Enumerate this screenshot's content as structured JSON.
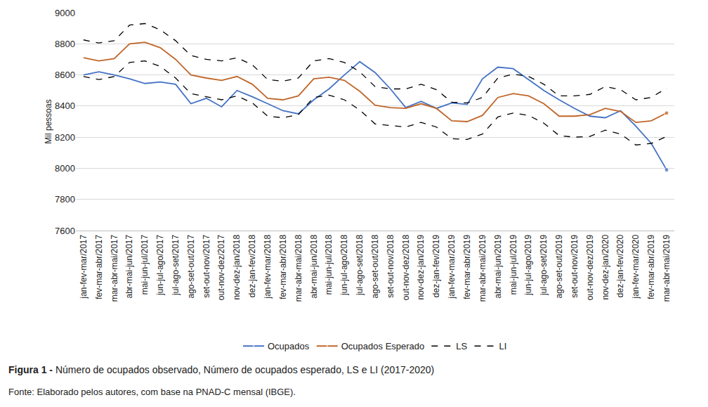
{
  "chart_data": {
    "type": "line",
    "title": "Figura 1 -",
    "subtitle": "Número de ocupados observado, Número de ocupados esperado, LS e LI (2017-2020)",
    "source": "Fonte: Elaborado pelos autores, com base na PNAD-C mensal (IBGE).",
    "y_label": "Mil pessoas",
    "categories": [
      "jan-fev-mar/2017",
      "fev-mar-abr/2017",
      "mar-abr-mai/2017",
      "abr-mai-jun/2017",
      "mai-jun-jul/2017",
      "jun-jul-ago/2017",
      "jul-ago-set/2017",
      "ago-set-out/2017",
      "set-out-nov/2017",
      "out-nov-dez/2017",
      "nov-dez-jan/2018",
      "dez-jan-fev/2018",
      "jan-fev-mar/2018",
      "fev-mar-abr/2018",
      "mar-abr-mai/2018",
      "abr-mai-jun/2018",
      "mai-jun-jul/2018",
      "jun-jul-ago/2018",
      "jul-ago-set/2018",
      "ago-set-out/2018",
      "set-out-nov/2018",
      "out-nov-dez/2018",
      "nov-dez-jan/2019",
      "dez-jan-fev/2019",
      "jan-fev-mar/2019",
      "fev-mar-abr/2019",
      "mar-abr-mai/2019",
      "abr-mai-jun/2019",
      "mai-jun-jul/2019",
      "jun-jul-ago/2019",
      "jul-ago-set/2019",
      "ago-set-out/2019",
      "set-out-nov/2019",
      "out-nov-dez/2019",
      "nov-dez-jan/2020",
      "dez-jan-fev/2020",
      "jan-fev-mar/2020",
      "fev-mar-abr/2019",
      "mar-abr-mai/2019"
    ],
    "series": [
      {
        "name": "Ocupados",
        "color": "#4472c4",
        "line_style": "solid",
        "marker": "last",
        "values": [
          8600,
          8620,
          8600,
          8575,
          8545,
          8555,
          8540,
          8415,
          8450,
          8395,
          8500,
          8460,
          8415,
          8370,
          8350,
          8440,
          8510,
          8600,
          8685,
          8615,
          8510,
          8390,
          8430,
          8385,
          8420,
          8410,
          8575,
          8650,
          8640,
          8570,
          8500,
          8440,
          8385,
          8335,
          8325,
          8370,
          8270,
          8160,
          7990
        ]
      },
      {
        "name": "Ocupados Esperado",
        "color": "#c0662a",
        "line_style": "solid",
        "marker": "last",
        "values": [
          8710,
          8690,
          8705,
          8800,
          8810,
          8775,
          8700,
          8600,
          8580,
          8565,
          8590,
          8540,
          8450,
          8440,
          8465,
          8575,
          8585,
          8565,
          8495,
          8405,
          8390,
          8385,
          8415,
          8385,
          8305,
          8300,
          8340,
          8455,
          8480,
          8465,
          8415,
          8335,
          8335,
          8345,
          8385,
          8365,
          8295,
          8305,
          8355
        ]
      },
      {
        "name": "LS",
        "color": "#000000",
        "line_style": "dashed",
        "marker": "none",
        "values": [
          8825,
          8805,
          8820,
          8920,
          8930,
          8890,
          8820,
          8725,
          8700,
          8690,
          8710,
          8665,
          8570,
          8560,
          8580,
          8690,
          8705,
          8680,
          8620,
          8525,
          8510,
          8510,
          8540,
          8505,
          8425,
          8420,
          8455,
          8580,
          8605,
          8590,
          8540,
          8465,
          8465,
          8475,
          8525,
          8505,
          8440,
          8455,
          8515
        ]
      },
      {
        "name": "LI",
        "color": "#000000",
        "line_style": "dashed",
        "marker": "none",
        "values": [
          8590,
          8570,
          8590,
          8680,
          8690,
          8655,
          8580,
          8480,
          8460,
          8440,
          8465,
          8420,
          8335,
          8325,
          8345,
          8455,
          8470,
          8440,
          8375,
          8285,
          8275,
          8265,
          8295,
          8265,
          8190,
          8185,
          8220,
          8330,
          8355,
          8340,
          8290,
          8210,
          8200,
          8205,
          8245,
          8220,
          8150,
          8160,
          8205
        ]
      }
    ],
    "ylim": [
      7600,
      9000
    ],
    "yticks": [
      7600,
      7800,
      8000,
      8200,
      8400,
      8600,
      8800,
      9000
    ],
    "grid": true,
    "legend": "bottom"
  }
}
